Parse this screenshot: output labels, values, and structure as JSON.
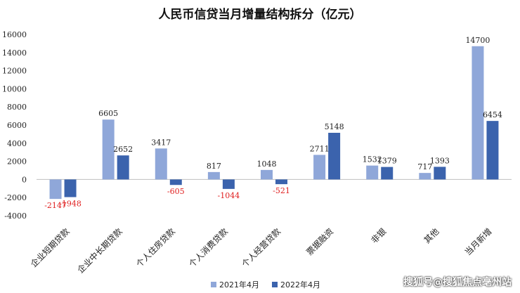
{
  "chart_data": {
    "type": "bar",
    "title": "人民币信贷当月增量结构拆分（亿元）",
    "categories": [
      "企业短期贷款",
      "企业中长期贷款",
      "个人住房贷款",
      "个人消费贷款",
      "个人经营贷款",
      "票据融资",
      "非银",
      "其他",
      "当月新增"
    ],
    "series": [
      {
        "name": "2021年4月",
        "values": [
          -2147,
          6605,
          3417,
          817,
          1048,
          2711,
          1532,
          717,
          14700
        ],
        "color": "#8fa7d9"
      },
      {
        "name": "2022年4月",
        "values": [
          -1948,
          2652,
          -605,
          -1044,
          -521,
          5148,
          1379,
          1393,
          6454
        ],
        "color": "#3b63ad"
      }
    ],
    "ylim": [
      -4000,
      16000
    ],
    "yticks": [
      -4000,
      -2000,
      0,
      2000,
      4000,
      6000,
      8000,
      10000,
      12000,
      14000,
      16000
    ],
    "negative_label_color": "#e02020",
    "grid": false,
    "legend_position": "bottom"
  },
  "watermark": "搜狐号@搜狐焦点亳州站"
}
